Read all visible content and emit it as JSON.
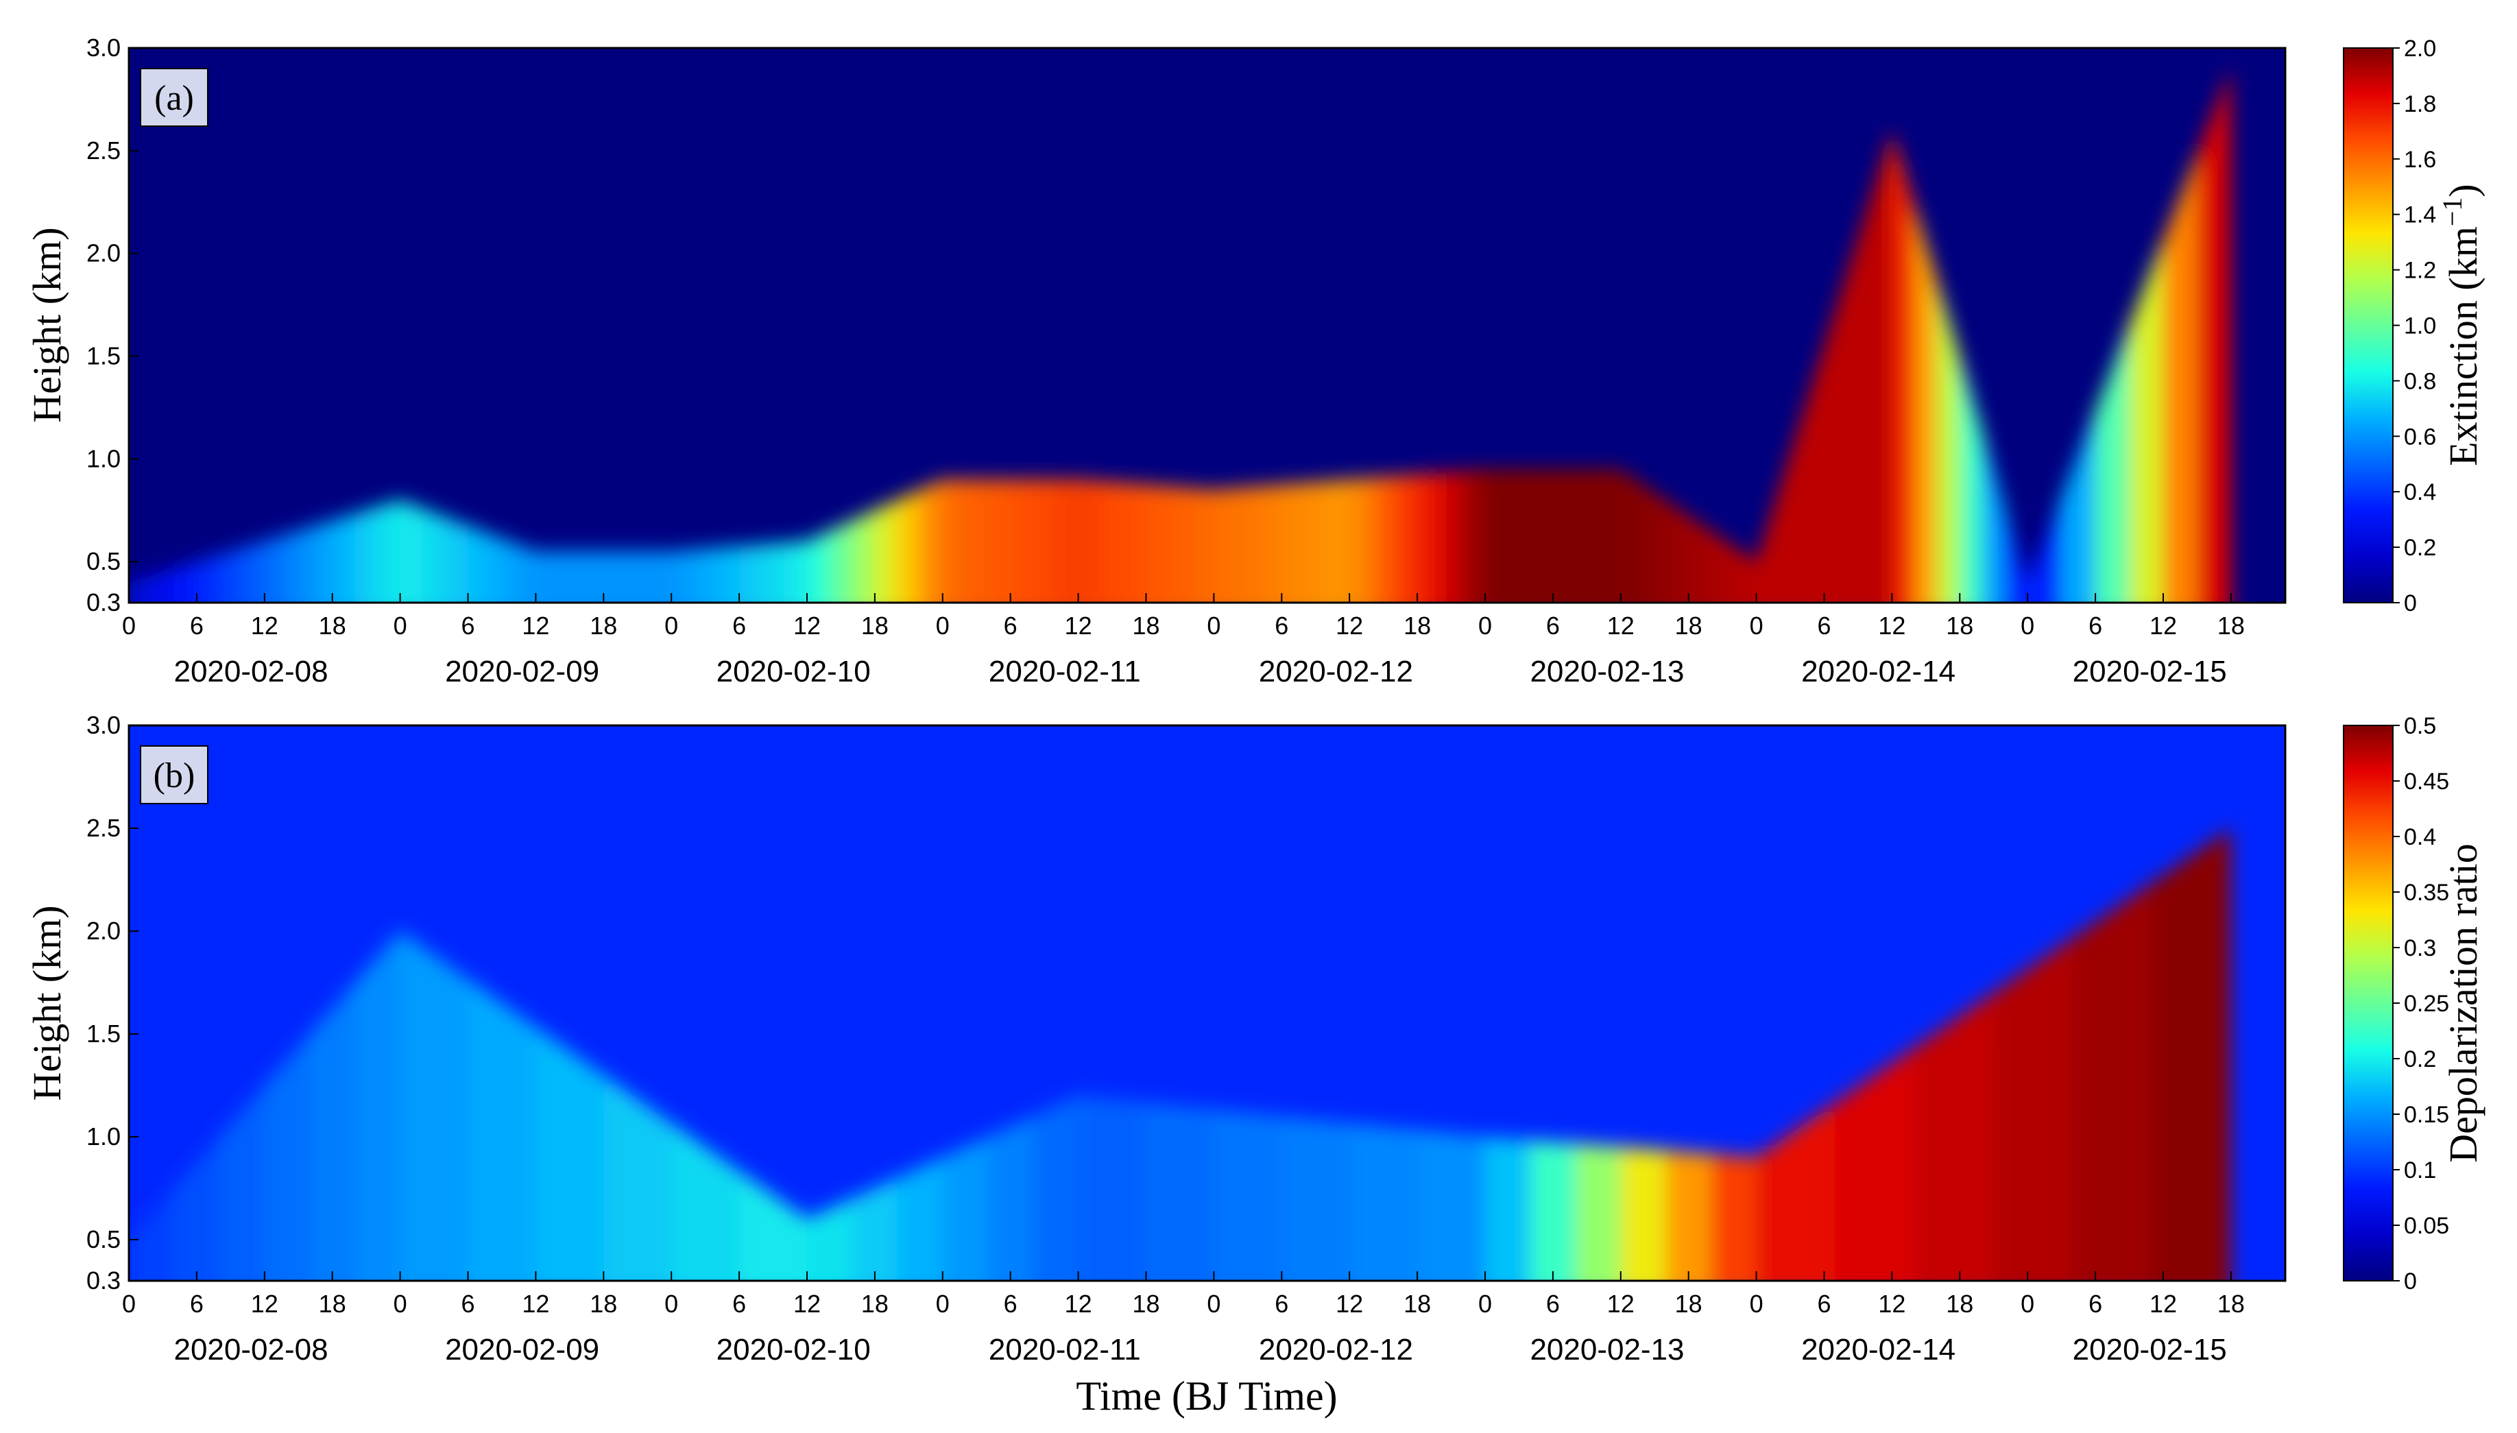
{
  "chart_data": [
    {
      "type": "heatmap",
      "panel_label": "(a)",
      "ylabel": "Height (km)",
      "ylim": [
        0.3,
        3.0
      ],
      "y_ticks": [
        "0.3",
        "0.5",
        "1.0",
        "1.5",
        "2.0",
        "2.5",
        "3.0"
      ],
      "x_hour_ticks": [
        "0",
        "6",
        "12",
        "18",
        "0",
        "6",
        "12",
        "18",
        "0",
        "6",
        "12",
        "18",
        "0",
        "6",
        "12",
        "18",
        "0",
        "6",
        "12",
        "18",
        "0",
        "6",
        "12",
        "18",
        "0",
        "6",
        "12",
        "18",
        "0",
        "6",
        "12",
        "18"
      ],
      "x_dates": [
        "2020-02-08",
        "2020-02-09",
        "2020-02-10",
        "2020-02-11",
        "2020-02-12",
        "2020-02-13",
        "2020-02-14",
        "2020-02-15"
      ],
      "colorbar_label": "Extinction (km",
      "colorbar_label_sup": "−1",
      "colorbar_label_end": ")",
      "colorbar_range": [
        0,
        2.0
      ],
      "colorbar_ticks": [
        "0",
        "0.2",
        "0.4",
        "0.6",
        "0.8",
        "1.0",
        "1.2",
        "1.4",
        "1.6",
        "1.8",
        "2.0"
      ],
      "colormap": [
        "#00007f",
        "#0000cc",
        "#0019ff",
        "#0066ff",
        "#00b2ff",
        "#19ffe5",
        "#66ff99",
        "#b2ff4c",
        "#ffe500",
        "#ff9900",
        "#ff4c00",
        "#e50000",
        "#7f0000"
      ],
      "layer_top_km": [
        {
          "day": 0.0,
          "top": 0.4,
          "value": 0.2
        },
        {
          "day": 0.5,
          "top": 0.6,
          "value": 0.5
        },
        {
          "day": 1.0,
          "top": 0.8,
          "value": 0.8
        },
        {
          "day": 1.5,
          "top": 0.55,
          "value": 0.6
        },
        {
          "day": 2.0,
          "top": 0.55,
          "value": 0.6
        },
        {
          "day": 2.5,
          "top": 0.6,
          "value": 0.8
        },
        {
          "day": 3.0,
          "top": 0.9,
          "value": 1.6
        },
        {
          "day": 3.5,
          "top": 0.9,
          "value": 1.7
        },
        {
          "day": 4.0,
          "top": 0.85,
          "value": 1.6
        },
        {
          "day": 4.5,
          "top": 0.9,
          "value": 1.5
        },
        {
          "day": 5.0,
          "top": 0.95,
          "value": 2.0
        },
        {
          "day": 5.5,
          "top": 0.95,
          "value": 2.0
        },
        {
          "day": 6.0,
          "top": 0.5,
          "value": 1.9
        },
        {
          "day": 6.5,
          "top": 2.6,
          "value": 1.9
        },
        {
          "day": 7.0,
          "top": 0.4,
          "value": 0.2
        },
        {
          "day": 7.75,
          "top": 2.9,
          "value": 2.0
        }
      ]
    },
    {
      "type": "heatmap",
      "panel_label": "(b)",
      "ylabel": "Height (km)",
      "xlabel": "Time (BJ Time)",
      "ylim": [
        0.3,
        3.0
      ],
      "y_ticks": [
        "0.3",
        "0.5",
        "1.0",
        "1.5",
        "2.0",
        "2.5",
        "3.0"
      ],
      "x_hour_ticks": [
        "0",
        "6",
        "12",
        "18",
        "0",
        "6",
        "12",
        "18",
        "0",
        "6",
        "12",
        "18",
        "0",
        "6",
        "12",
        "18",
        "0",
        "6",
        "12",
        "18",
        "0",
        "6",
        "12",
        "18",
        "0",
        "6",
        "12",
        "18",
        "0",
        "6",
        "12",
        "18"
      ],
      "x_dates": [
        "2020-02-08",
        "2020-02-09",
        "2020-02-10",
        "2020-02-11",
        "2020-02-12",
        "2020-02-13",
        "2020-02-14",
        "2020-02-15"
      ],
      "colorbar_label": "Depolarization ratio",
      "colorbar_range": [
        0,
        0.5
      ],
      "colorbar_ticks": [
        "0",
        "0.05",
        "0.1",
        "0.15",
        "0.2",
        "0.25",
        "0.3",
        "0.35",
        "0.4",
        "0.45",
        "0.5"
      ],
      "colormap": [
        "#00007f",
        "#0000cc",
        "#0019ff",
        "#0066ff",
        "#00b2ff",
        "#19ffe5",
        "#66ff99",
        "#b2ff4c",
        "#ffe500",
        "#ff9900",
        "#ff4c00",
        "#e50000",
        "#7f0000"
      ],
      "layer_top_km": [
        {
          "day": 0.0,
          "top": 0.5,
          "value": 0.1
        },
        {
          "day": 1.0,
          "top": 2.0,
          "value": 0.15
        },
        {
          "day": 2.5,
          "top": 0.6,
          "value": 0.2
        },
        {
          "day": 3.5,
          "top": 1.2,
          "value": 0.12
        },
        {
          "day": 5.0,
          "top": 1.0,
          "value": 0.15
        },
        {
          "day": 6.0,
          "top": 0.9,
          "value": 0.45
        },
        {
          "day": 7.75,
          "top": 2.5,
          "value": 0.5
        }
      ]
    }
  ]
}
